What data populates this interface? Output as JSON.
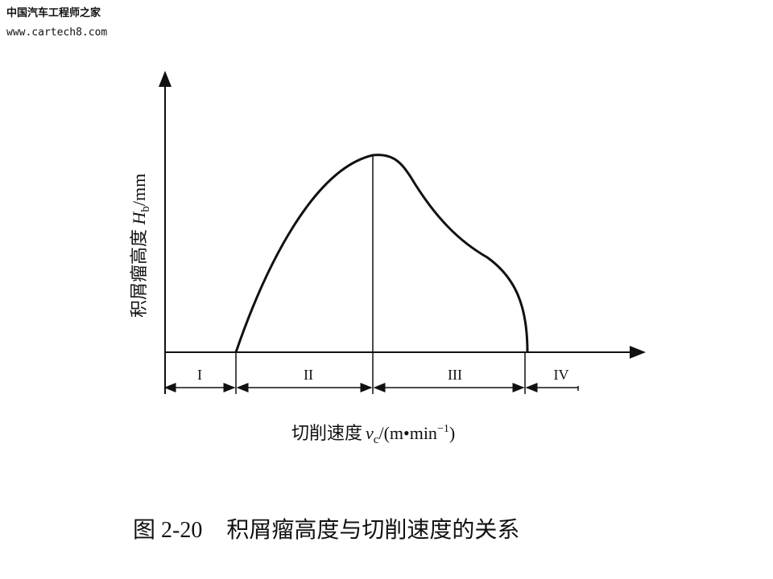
{
  "watermark": {
    "site_name": "中国汽车工程师之家",
    "url": "www.cartech8.com"
  },
  "y_axis_label": {
    "text": "积屑瘤高度 ",
    "symbol": "H",
    "subscript": "b",
    "unit": "/mm"
  },
  "x_axis_label": {
    "text": "切削速度",
    "symbol": "v",
    "subscript": "c",
    "unit": "/(m•min",
    "exponent": "−1",
    "close": ")"
  },
  "zones": [
    "I",
    "II",
    "III",
    "IV"
  ],
  "caption": {
    "number": "图 2-20",
    "title": "积屑瘤高度与切削速度的关系"
  }
}
